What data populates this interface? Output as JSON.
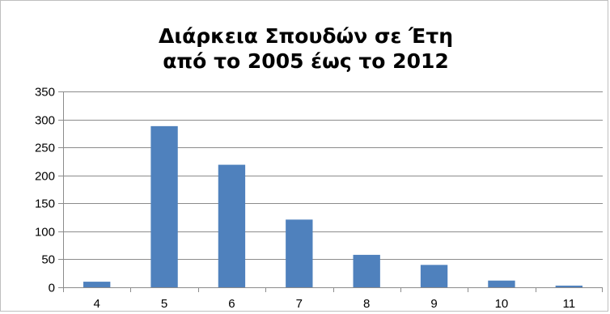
{
  "chart_data": {
    "type": "bar",
    "title_lines": [
      "Διάρκεια Σπουδών σε Έτη",
      "από το 2005 έως το 2012"
    ],
    "xlabel": "",
    "ylabel": "",
    "categories": [
      "4",
      "5",
      "6",
      "7",
      "8",
      "9",
      "10",
      "11"
    ],
    "values": [
      10,
      288,
      219,
      121,
      58,
      40,
      12,
      3
    ],
    "ylim": [
      0,
      350
    ],
    "yticks": [
      "0",
      "50",
      "100",
      "150",
      "200",
      "250",
      "300",
      "350"
    ],
    "grid": true,
    "legend": "none",
    "bar_color": "#4f81bd",
    "grid_color": "#8c8c8c"
  }
}
